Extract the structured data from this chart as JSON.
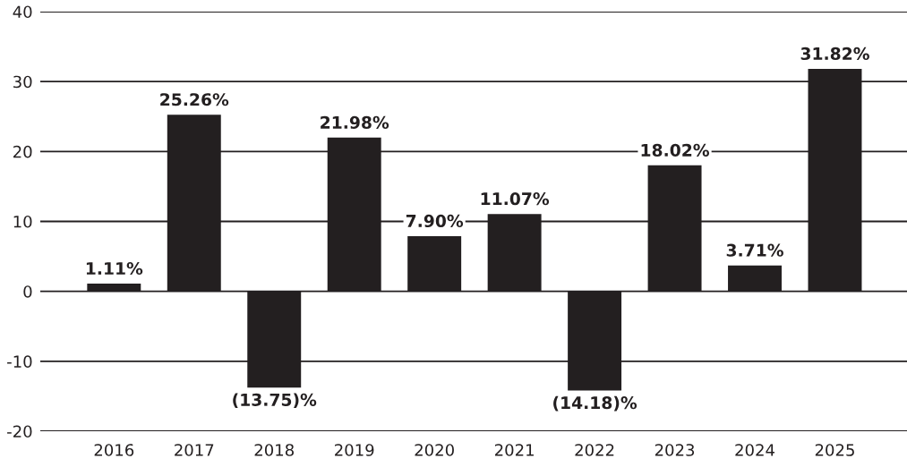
{
  "chart_data": {
    "type": "bar",
    "categories": [
      "2016",
      "2017",
      "2018",
      "2019",
      "2020",
      "2021",
      "2022",
      "2023",
      "2024",
      "2025"
    ],
    "values": [
      1.11,
      25.26,
      -13.75,
      21.98,
      7.9,
      11.07,
      -14.18,
      18.02,
      3.71,
      31.82
    ],
    "value_labels": [
      "1.11%",
      "25.26%",
      "(13.75)%",
      "21.98%",
      "7.90%",
      "11.07%",
      "(14.18)%",
      "18.02%",
      "3.71%",
      "31.82%"
    ],
    "color": "#231f20",
    "ylim": [
      -20,
      40
    ],
    "yticks": [
      -20,
      -10,
      0,
      10,
      20,
      30,
      40
    ],
    "grid": "y",
    "legend": false
  }
}
